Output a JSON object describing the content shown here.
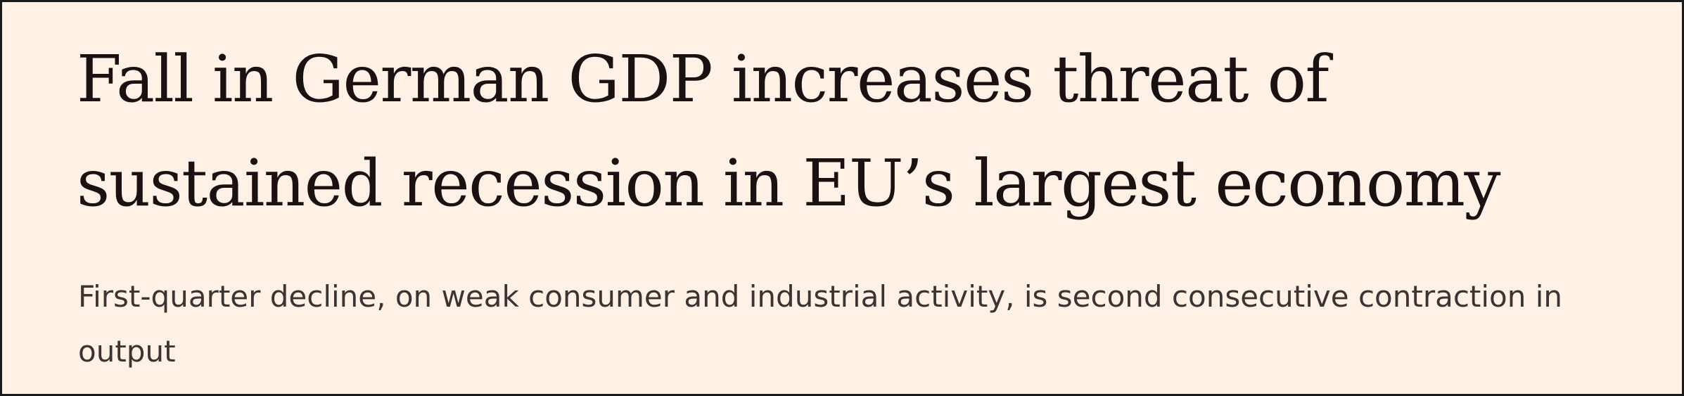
{
  "article": {
    "headline": "Fall in German GDP increases threat of sustained recession in EU’s largest economy",
    "standfirst": "First-quarter decline, on weak consumer and industrial activity, is second consecutive contraction in output"
  },
  "colors": {
    "background": "#fff1e6",
    "headline_text": "#1a1212",
    "standfirst_text": "#3a3433",
    "border": "#1a1a1a"
  }
}
